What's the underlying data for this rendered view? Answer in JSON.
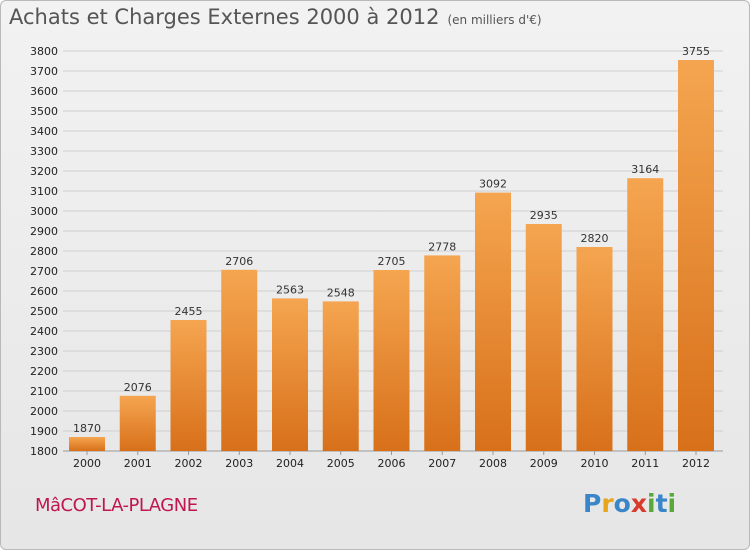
{
  "chart_data": {
    "type": "bar",
    "title": "Achats et Charges Externes 2000 à 2012",
    "subtitle": "(en milliers d'€)",
    "categories": [
      "2000",
      "2001",
      "2002",
      "2003",
      "2004",
      "2005",
      "2006",
      "2007",
      "2008",
      "2009",
      "2010",
      "2011",
      "2012"
    ],
    "values": [
      1870,
      2076,
      2455,
      2706,
      2563,
      2548,
      2705,
      2778,
      3092,
      2935,
      2820,
      3164,
      3755
    ],
    "ylim": [
      1800,
      3800
    ],
    "ytick_step": 100,
    "grid": true,
    "xlabel": "",
    "ylabel": ""
  },
  "commune": "MâCOT-LA-PLAGNE",
  "logo": {
    "letters": [
      "P",
      "r",
      "o",
      "x",
      "i",
      "t",
      "i"
    ]
  },
  "colors": {
    "bar_light": "#f5a550",
    "bar_dark": "#d8701a",
    "grid": "#cfcfcf",
    "commune": "#c0164f",
    "logo": [
      "#3a86c8",
      "#e8a41a",
      "#3a86c8",
      "#d93a2a",
      "#59a93a",
      "#3a86c8",
      "#59a93a"
    ]
  }
}
